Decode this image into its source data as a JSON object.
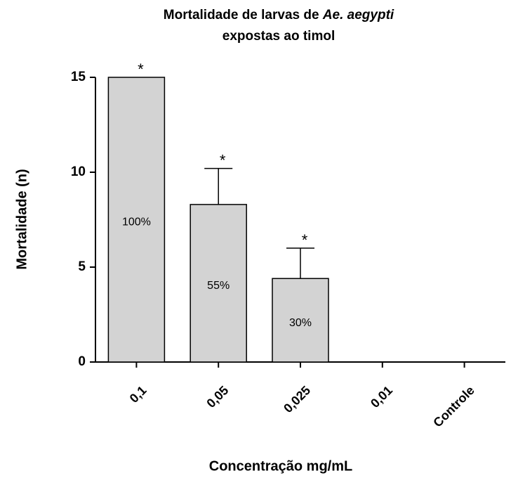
{
  "chart_data": {
    "type": "bar",
    "title": [
      "Mortalidade de larvas de",
      "Ae. aegypti",
      "expostas ao timol"
    ],
    "xlabel": "Concentração mg/mL",
    "ylabel": "Mortalidade (n)",
    "categories": [
      "0,1",
      "0,05",
      "0,025",
      "0,01",
      "Controle"
    ],
    "values": [
      15,
      8.3,
      4.4,
      0,
      0
    ],
    "errors": [
      0,
      1.9,
      1.6,
      null,
      null
    ],
    "annotations": [
      "100%",
      "55%",
      "30%",
      null,
      null
    ],
    "significance": [
      "*",
      "*",
      "*",
      null,
      null
    ],
    "color": "#d3d3d3",
    "ylim": [
      0,
      15
    ],
    "yticks": [
      0,
      5,
      10,
      15
    ],
    "grid": false
  }
}
